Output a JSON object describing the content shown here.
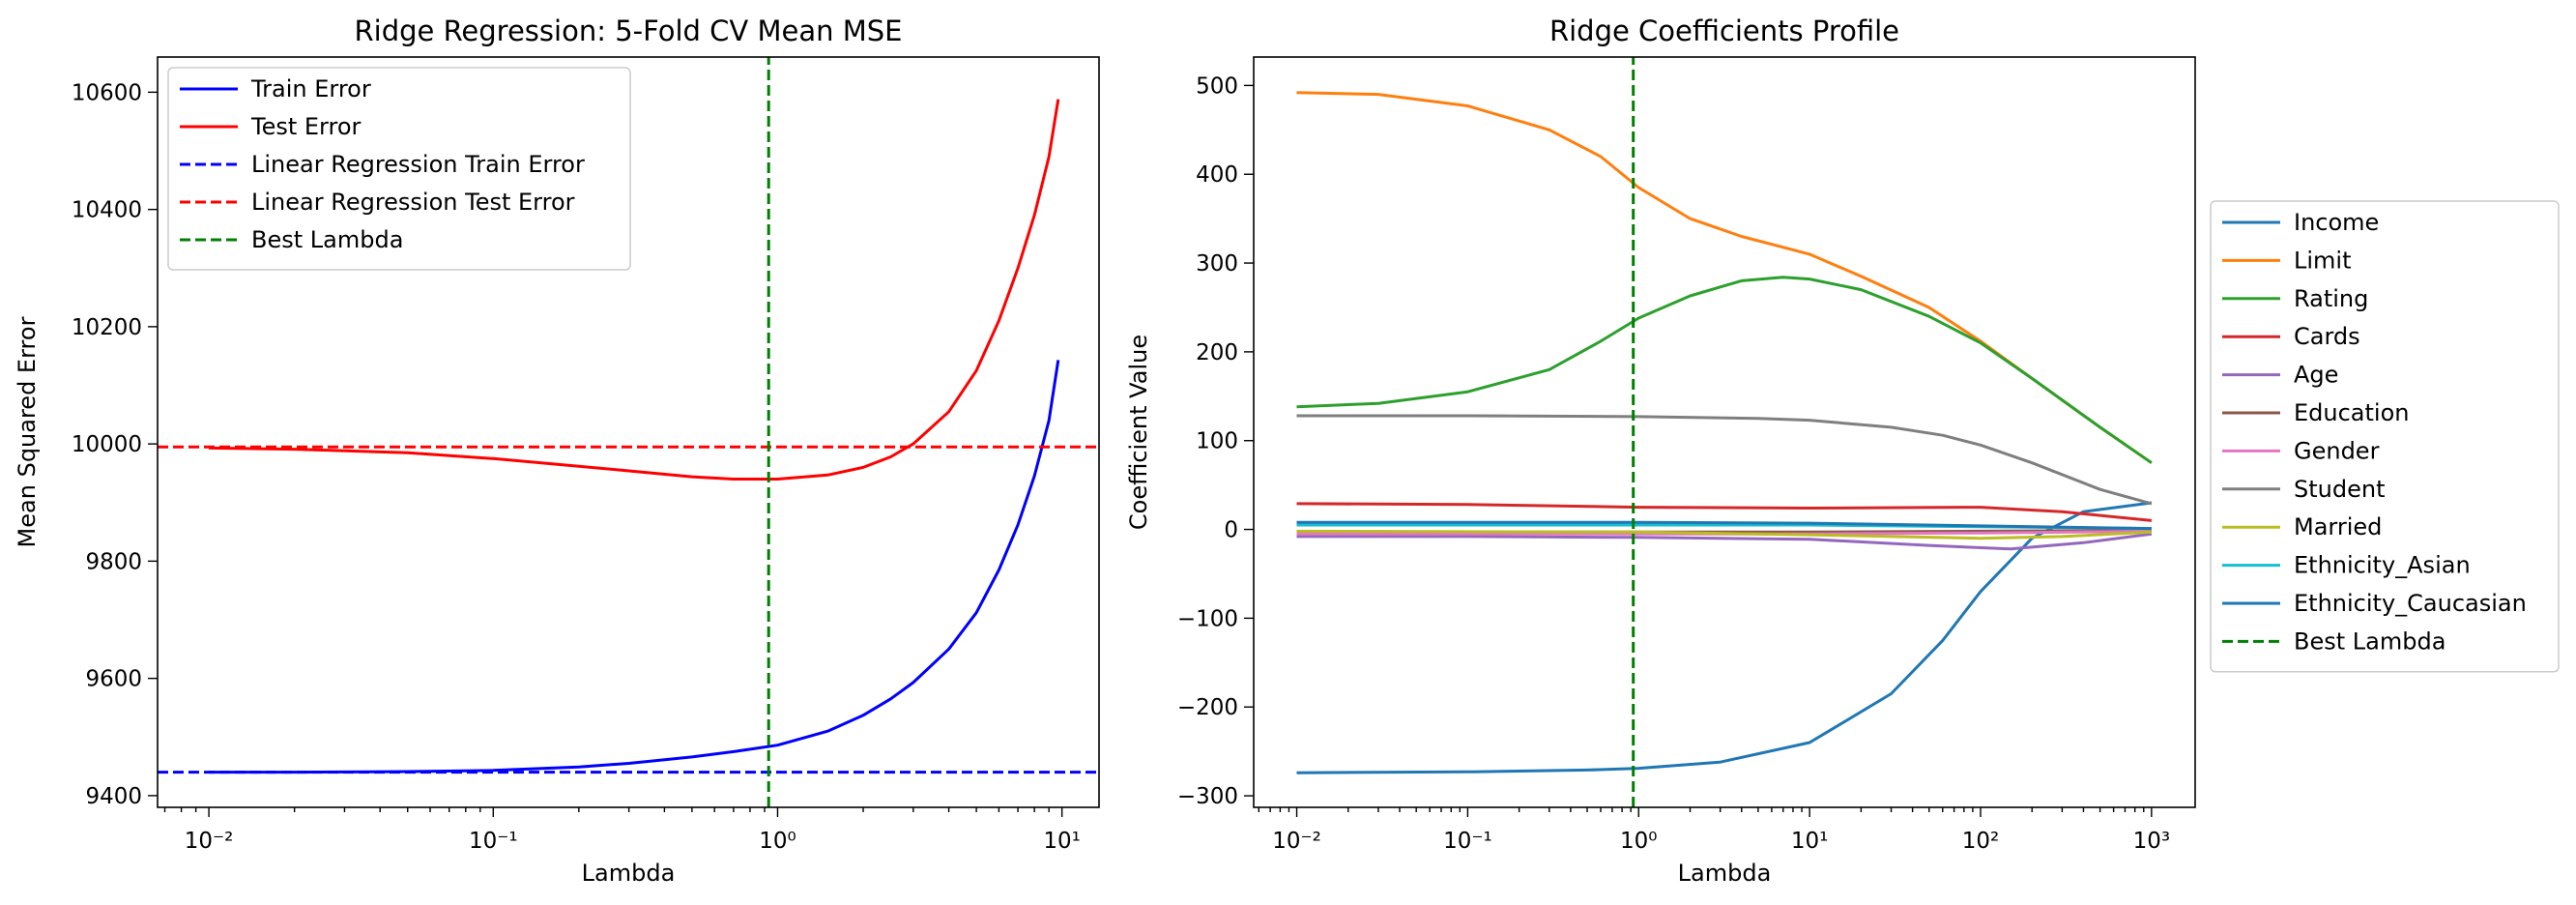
{
  "chart_data": [
    {
      "type": "line",
      "title": "Ridge Regression: 5-Fold CV Mean MSE",
      "xlabel": "Lambda",
      "ylabel": "Mean Squared Error",
      "xscale": "log",
      "xlim": [
        0.0066,
        13.5
      ],
      "ylim": [
        9380,
        10660
      ],
      "xticks": [
        0.01,
        0.1,
        1,
        10
      ],
      "yticks": [
        9400,
        9600,
        9800,
        10000,
        10200,
        10400,
        10600
      ],
      "grid": false,
      "legend_position": "upper-left",
      "series": [
        {
          "name": "Train Error",
          "color": "#0000ff",
          "style": "solid",
          "x": [
            0.01,
            0.02,
            0.05,
            0.1,
            0.2,
            0.3,
            0.5,
            0.7,
            1,
            1.5,
            2,
            2.5,
            3,
            4,
            5,
            6,
            7,
            8,
            9,
            9.7
          ],
          "y": [
            9440,
            9440,
            9441,
            9443,
            9449,
            9455,
            9466,
            9475,
            9486,
            9510,
            9537,
            9565,
            9593,
            9650,
            9712,
            9785,
            9862,
            9945,
            10040,
            10143
          ]
        },
        {
          "name": "Test Error",
          "color": "#ff0000",
          "style": "solid",
          "x": [
            0.01,
            0.02,
            0.05,
            0.1,
            0.2,
            0.3,
            0.5,
            0.7,
            1,
            1.5,
            2,
            2.5,
            3,
            4,
            5,
            6,
            7,
            8,
            9,
            9.7
          ],
          "y": [
            9993,
            9991,
            9985,
            9975,
            9962,
            9954,
            9944,
            9940,
            9940,
            9947,
            9960,
            9978,
            10000,
            10055,
            10125,
            10210,
            10300,
            10390,
            10490,
            10588
          ]
        },
        {
          "name": "Linear Regression Train Error",
          "color": "#0000ff",
          "style": "dashed",
          "x": [
            0.0066,
            13.5
          ],
          "y": [
            9440,
            9440
          ]
        },
        {
          "name": "Linear Regression Test Error",
          "color": "#ff0000",
          "style": "dashed",
          "x": [
            0.0066,
            13.5
          ],
          "y": [
            9995,
            9995
          ]
        },
        {
          "name": "Best Lambda",
          "color": "#008000",
          "style": "dashed",
          "orientation": "vertical",
          "x": [
            0.93,
            0.93
          ],
          "y": [
            9380,
            10660
          ]
        }
      ]
    },
    {
      "type": "line",
      "title": "Ridge Coefficients Profile",
      "xlabel": "Lambda",
      "ylabel": "Coefficient Value",
      "xscale": "log",
      "xlim": [
        0.0056,
        1800
      ],
      "ylim": [
        -313,
        532
      ],
      "xticks": [
        0.01,
        0.1,
        1,
        10,
        100,
        1000
      ],
      "yticks": [
        -300,
        -200,
        -100,
        0,
        100,
        200,
        300,
        400,
        500
      ],
      "grid": false,
      "legend_position": "center-right-outside",
      "series": [
        {
          "name": "Income",
          "color": "#1f77b4",
          "style": "solid",
          "x": [
            0.01,
            0.1,
            0.5,
            1,
            3,
            10,
            30,
            60,
            100,
            200,
            400,
            1000
          ],
          "y": [
            -274,
            -273,
            -271,
            -269,
            -262,
            -240,
            -185,
            -125,
            -70,
            -10,
            20,
            30
          ]
        },
        {
          "name": "Limit",
          "color": "#ff7f0e",
          "style": "solid",
          "x": [
            0.01,
            0.03,
            0.1,
            0.3,
            0.6,
            1,
            2,
            4,
            10,
            20,
            50,
            100,
            200,
            500,
            1000
          ],
          "y": [
            492,
            490,
            477,
            450,
            420,
            385,
            350,
            330,
            310,
            285,
            250,
            212,
            170,
            115,
            75
          ]
        },
        {
          "name": "Rating",
          "color": "#2ca02c",
          "style": "solid",
          "x": [
            0.01,
            0.03,
            0.1,
            0.3,
            0.6,
            1,
            2,
            4,
            7,
            10,
            20,
            50,
            100,
            200,
            500,
            1000
          ],
          "y": [
            138,
            142,
            155,
            180,
            212,
            238,
            263,
            280,
            284,
            282,
            270,
            240,
            210,
            170,
            115,
            75
          ]
        },
        {
          "name": "Cards",
          "color": "#d62728",
          "style": "solid",
          "x": [
            0.01,
            0.1,
            1,
            10,
            100,
            300,
            1000
          ],
          "y": [
            29,
            28,
            25,
            24,
            25,
            20,
            10
          ]
        },
        {
          "name": "Age",
          "color": "#9467bd",
          "style": "solid",
          "x": [
            0.01,
            0.1,
            1,
            10,
            50,
            150,
            400,
            1000
          ],
          "y": [
            -8,
            -8,
            -9,
            -11,
            -18,
            -22,
            -15,
            -5
          ]
        },
        {
          "name": "Education",
          "color": "#8c564b",
          "style": "solid",
          "x": [
            0.01,
            1,
            10,
            100,
            1000
          ],
          "y": [
            -3,
            -3,
            -3,
            -2,
            -1
          ]
        },
        {
          "name": "Gender",
          "color": "#e377c2",
          "style": "solid",
          "x": [
            0.01,
            1,
            10,
            100,
            1000
          ],
          "y": [
            -5,
            -5,
            -5,
            -4,
            -2
          ]
        },
        {
          "name": "Student",
          "color": "#7f7f7f",
          "style": "solid",
          "x": [
            0.01,
            0.1,
            1,
            5,
            10,
            30,
            60,
            100,
            200,
            500,
            1000
          ],
          "y": [
            128,
            128,
            127,
            125,
            123,
            115,
            106,
            95,
            75,
            45,
            29
          ]
        },
        {
          "name": "Married",
          "color": "#bcbd22",
          "style": "solid",
          "x": [
            0.01,
            1,
            10,
            100,
            300,
            1000
          ],
          "y": [
            -2,
            -3,
            -6,
            -10,
            -8,
            -3
          ]
        },
        {
          "name": "Ethnicity_Asian",
          "color": "#17becf",
          "style": "solid",
          "x": [
            0.01,
            1,
            10,
            100,
            1000
          ],
          "y": [
            5,
            5,
            5,
            3,
            1
          ]
        },
        {
          "name": "Ethnicity_Caucasian",
          "color": "#1f77b4",
          "style": "solid",
          "x": [
            0.01,
            1,
            10,
            100,
            1000
          ],
          "y": [
            8,
            8,
            7,
            4,
            1
          ]
        },
        {
          "name": "Best Lambda",
          "color": "#008000",
          "style": "dashed",
          "orientation": "vertical",
          "x": [
            0.93,
            0.93
          ],
          "y": [
            -313,
            532
          ]
        }
      ]
    }
  ]
}
